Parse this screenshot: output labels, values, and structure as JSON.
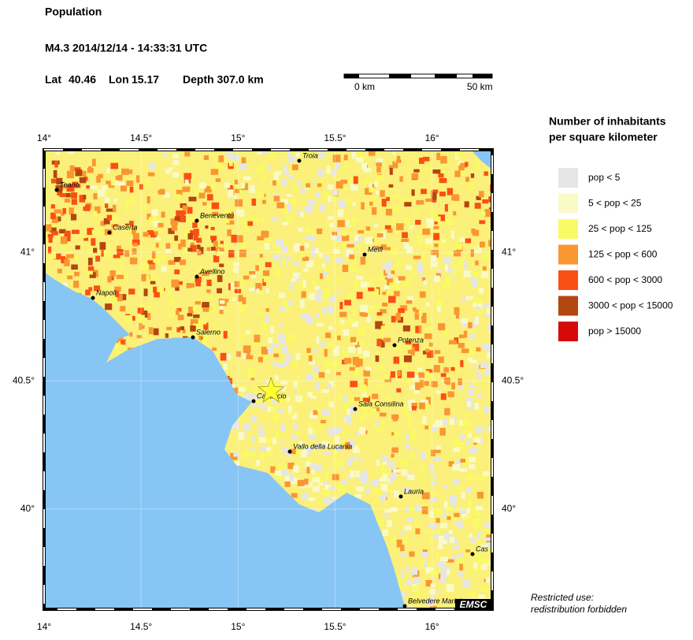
{
  "header": {
    "title": "Population",
    "event": "M4.3  2014/12/14 - 14:33:31 UTC",
    "lat_label": "Lat",
    "lat": 40.46,
    "lon_label": "Lon",
    "lon": 15.17,
    "depth_label": "Depth 307.0 km"
  },
  "scale_bar": {
    "start": "0 km",
    "end": "50 km"
  },
  "map": {
    "xlim": [
      14,
      16.31
    ],
    "ylim": [
      39.61,
      41.4
    ],
    "xticks": [
      {
        "value": 14,
        "label": "14°"
      },
      {
        "value": 14.5,
        "label": "14.5°"
      },
      {
        "value": 15,
        "label": "15°"
      },
      {
        "value": 15.5,
        "label": "15.5°"
      },
      {
        "value": 16,
        "label": "16°"
      }
    ],
    "yticks": [
      {
        "value": 40,
        "label": "40°"
      },
      {
        "value": 40.5,
        "label": "40.5°"
      },
      {
        "value": 41,
        "label": "41°"
      }
    ],
    "cities": [
      "Teano",
      "Benevento",
      "Caserta",
      "Avellino",
      "Napoli",
      "Salerno",
      "Troia",
      "Melfi",
      "Potenza",
      "Capaccio",
      "Sala Consilina",
      "Vallo della Lucania",
      "Lauria",
      "Cas",
      "Belvedere Marittimo"
    ],
    "logo": "EMSC"
  },
  "legend": {
    "title": [
      "Number of inhabitants",
      "per square kilometer"
    ],
    "items": [
      {
        "label": "pop < 5",
        "color": "#e6e6e6"
      },
      {
        "label": "5 < pop < 25",
        "color": "#fafac8"
      },
      {
        "label": "25 < pop < 125",
        "color": "#fafa64"
      },
      {
        "label": "125 < pop < 600",
        "color": "#fa9632"
      },
      {
        "label": "600 < pop < 3000",
        "color": "#fa5014"
      },
      {
        "label": "3000 < pop < 15000",
        "color": "#b4460f"
      },
      {
        "label": "pop > 15000",
        "color": "#d70a0a"
      }
    ]
  },
  "footer": [
    "Restricted use:",
    "redistribution forbidden"
  ]
}
